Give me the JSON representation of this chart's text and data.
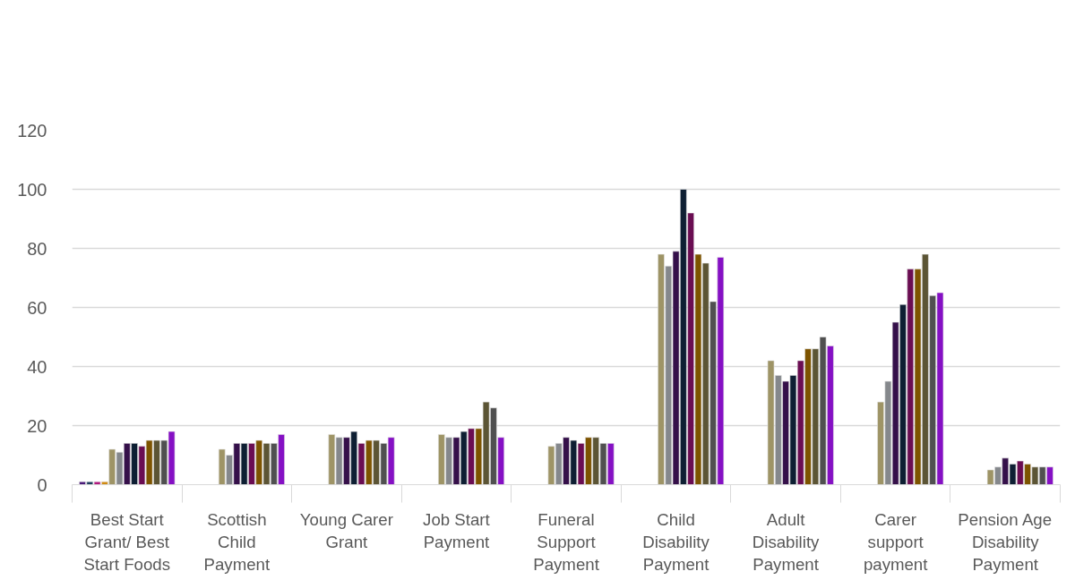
{
  "chart_data": {
    "type": "bar",
    "categories": [
      "Best Start Grant/ Best Start Foods",
      "Scottish Child Payment",
      "Young Carer Grant",
      "Job Start Payment",
      "Funeral Support Payment",
      "Child Disability Payment",
      "Adult Disability Payment",
      "Carer support payment",
      "Pension Age Disability Payment"
    ],
    "series": [
      {
        "color": "#4b1a7a",
        "values": [
          1,
          null,
          null,
          null,
          null,
          null,
          null,
          null,
          null
        ]
      },
      {
        "color": "#1f3e5e",
        "values": [
          1,
          null,
          null,
          null,
          null,
          null,
          null,
          null,
          null
        ]
      },
      {
        "color": "#b0187e",
        "values": [
          1,
          null,
          null,
          null,
          null,
          null,
          null,
          null,
          null
        ]
      },
      {
        "color": "#d08a10",
        "values": [
          1,
          null,
          null,
          null,
          null,
          null,
          null,
          null,
          null
        ]
      },
      {
        "color": "#9e9466",
        "values": [
          12,
          12,
          17,
          17,
          13,
          78,
          42,
          28,
          5
        ]
      },
      {
        "color": "#85888c",
        "values": [
          11,
          10,
          16,
          16,
          14,
          74,
          37,
          35,
          6
        ]
      },
      {
        "color": "#35104a",
        "values": [
          14,
          14,
          16,
          16,
          16,
          79,
          35,
          55,
          9
        ]
      },
      {
        "color": "#0e1f33",
        "values": [
          14,
          14,
          18,
          18,
          15,
          100,
          37,
          61,
          7
        ]
      },
      {
        "color": "#6a0d52",
        "values": [
          13,
          14,
          14,
          19,
          14,
          92,
          42,
          73,
          8
        ]
      },
      {
        "color": "#7d5400",
        "values": [
          15,
          15,
          15,
          19,
          16,
          78,
          46,
          73,
          7
        ]
      },
      {
        "color": "#5c5535",
        "values": [
          15,
          14,
          15,
          28,
          16,
          75,
          46,
          78,
          6
        ]
      },
      {
        "color": "#505050",
        "values": [
          15,
          14,
          14,
          26,
          14,
          62,
          50,
          64,
          6
        ]
      },
      {
        "color": "#8510c4",
        "values": [
          18,
          17,
          16,
          16,
          14,
          77,
          47,
          65,
          6
        ]
      }
    ],
    "ylim": [
      0,
      120
    ],
    "yticks": [
      0,
      20,
      40,
      60,
      80,
      100,
      120
    ],
    "grid": "y"
  }
}
